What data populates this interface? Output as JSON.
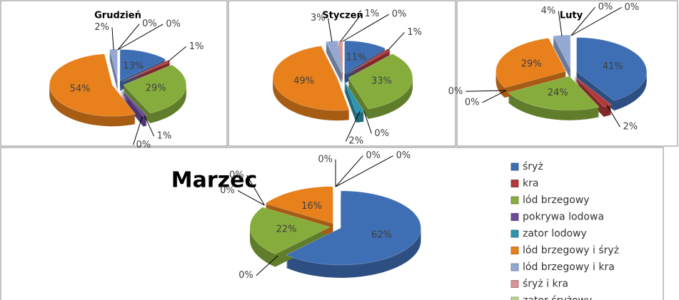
{
  "chart_data": [
    {
      "type": "pie",
      "title": "Grudzień",
      "values": [
        13,
        1,
        29,
        1,
        0,
        54,
        2,
        0,
        0
      ],
      "value_labels": [
        "13%",
        "1%",
        "29%",
        "1%",
        "0%",
        "54%",
        "2%",
        "0%",
        "0%"
      ]
    },
    {
      "type": "pie",
      "title": "Styczeń",
      "values": [
        11,
        1,
        33,
        0,
        2,
        49,
        3,
        1,
        0
      ],
      "value_labels": [
        "11%",
        "1%",
        "33%",
        "0%",
        "2%",
        "49%",
        "3%",
        "1%",
        "0%"
      ]
    },
    {
      "type": "pie",
      "title": "Luty",
      "values": [
        41,
        2,
        24,
        0,
        0,
        29,
        4,
        0,
        0
      ],
      "value_labels": [
        "41%",
        "2%",
        "24%",
        "0%",
        "0%",
        "29%",
        "4%",
        "0%",
        "0%"
      ]
    },
    {
      "type": "pie",
      "title": "Marzec",
      "values": [
        62,
        0,
        22,
        0,
        0,
        16,
        0,
        0,
        0
      ],
      "value_labels": [
        "62%",
        "0%",
        "22%",
        "0%",
        "0%",
        "16%",
        "0%",
        "0%",
        "0%"
      ],
      "categories": [
        "śryż",
        "kra",
        "lód brzegowy",
        "pokrywa lodowa",
        "zator lodowy",
        "lód brzegowy i śryż",
        "lód brzegowy i kra",
        "śryż i kra",
        "zator śryżowy"
      ],
      "colors": [
        "#3e6eb4",
        "#b3393a",
        "#86ad3c",
        "#6b4a9a",
        "#2f94ae",
        "#e8801c",
        "#93a9d4",
        "#d99594",
        "#b9d18f"
      ],
      "legend": "right"
    }
  ]
}
